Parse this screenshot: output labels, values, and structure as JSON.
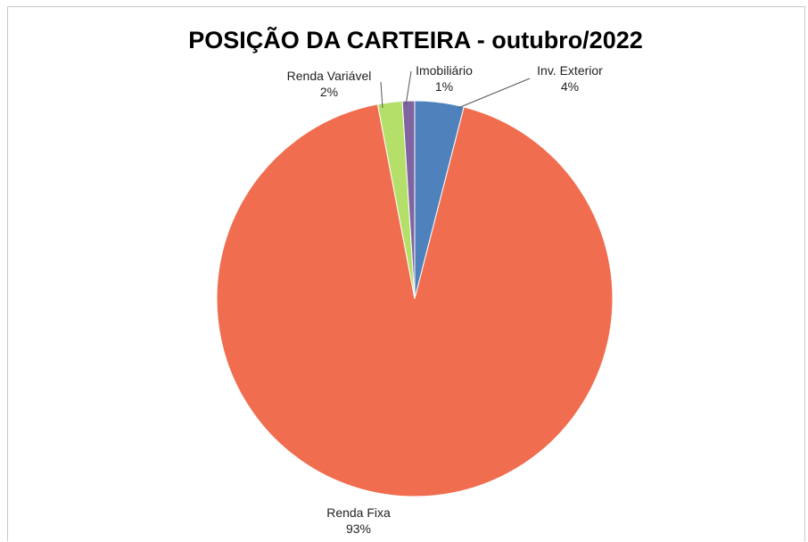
{
  "chart_data": {
    "type": "pie",
    "title": "POSIÇÃO DA CARTEIRA - outubro/2022",
    "slices": [
      {
        "name": "Inv. Exterior",
        "percent_label": "4%",
        "value": 4,
        "color": "#4f81bd"
      },
      {
        "name": "Renda Fixa",
        "percent_label": "93%",
        "value": 93,
        "color": "#f06d4f"
      },
      {
        "name": "Renda Variável",
        "percent_label": "2%",
        "value": 2,
        "color": "#b4e06a"
      },
      {
        "name": "Imobiliário",
        "percent_label": "1%",
        "value": 1,
        "color": "#8064a2"
      }
    ],
    "start_angle_deg": 0,
    "direction": "clockwise",
    "legend": "none",
    "data_labels": "outside with leader lines"
  }
}
